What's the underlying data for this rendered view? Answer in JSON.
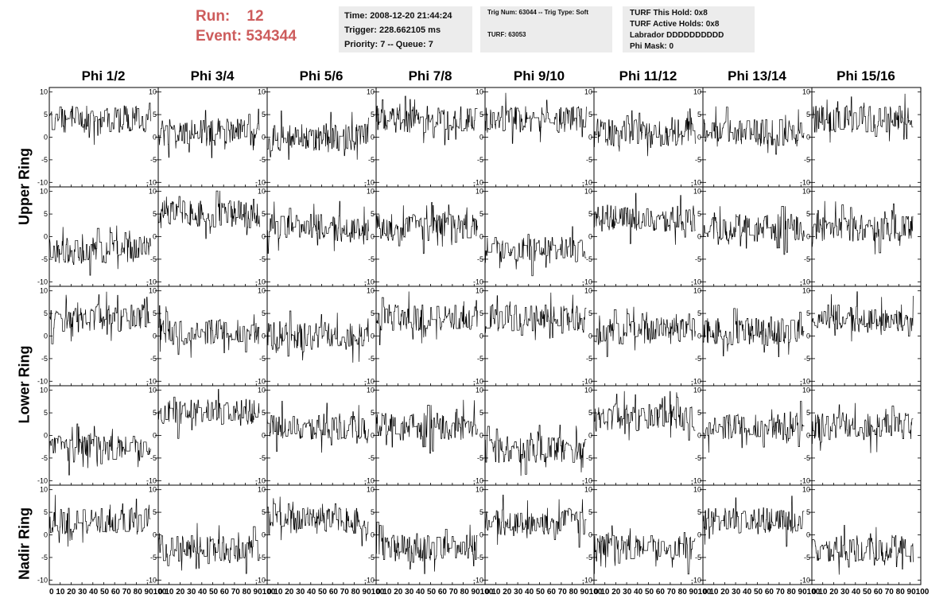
{
  "header": {
    "run_label": "Run:",
    "run_value": "12",
    "event_label": "Event:",
    "event_value": "534344"
  },
  "info_time": {
    "time": "Time: 2008-12-20 21:44:24",
    "trigger": "Trigger: 228.662105 ms",
    "priority": "Priority: 7 -- Queue: 7"
  },
  "info_trig": {
    "trig": "Trig Num: 63044 -- Trig Type: Soft",
    "turf": "TURF: 63053"
  },
  "info_turf": {
    "hold": "TURF This Hold: 0x8",
    "active": "TURF Active Holds: 0x8",
    "labrador": "Labrador DDDDDDDDDD",
    "phi_mask": "Phi Mask: 0"
  },
  "columns": [
    "Phi 1/2",
    "Phi 3/4",
    "Phi 5/6",
    "Phi 7/8",
    "Phi 9/10",
    "Phi 11/12",
    "Phi 13/14",
    "Phi 15/16"
  ],
  "ring_labels": [
    "Upper Ring",
    "Lower Ring",
    "Nadir Ring"
  ],
  "chart_data": {
    "type": "line",
    "panel_grid": {
      "rows": 5,
      "cols": 8
    },
    "xlim": [
      0,
      100
    ],
    "ylim": [
      -11,
      11
    ],
    "x_ticks": [
      0,
      10,
      20,
      30,
      40,
      50,
      60,
      70,
      80,
      90,
      100
    ],
    "y_ticks": [
      -10,
      -5,
      0,
      5,
      10
    ],
    "x_tick_labels_bottom": "0 10 20 30 40 50 60 70 80 90100",
    "approx_trace_centers": [
      [
        4,
        1,
        0,
        4,
        4,
        1,
        1,
        4
      ],
      [
        -3,
        5,
        2,
        2,
        -3,
        4,
        2,
        2
      ],
      [
        4,
        1,
        0,
        4,
        4,
        1,
        1,
        4
      ],
      [
        -3,
        5,
        2,
        2,
        -3,
        4,
        2,
        2
      ],
      [
        3,
        -3,
        3,
        -3,
        3,
        -3,
        3,
        -3
      ]
    ]
  }
}
